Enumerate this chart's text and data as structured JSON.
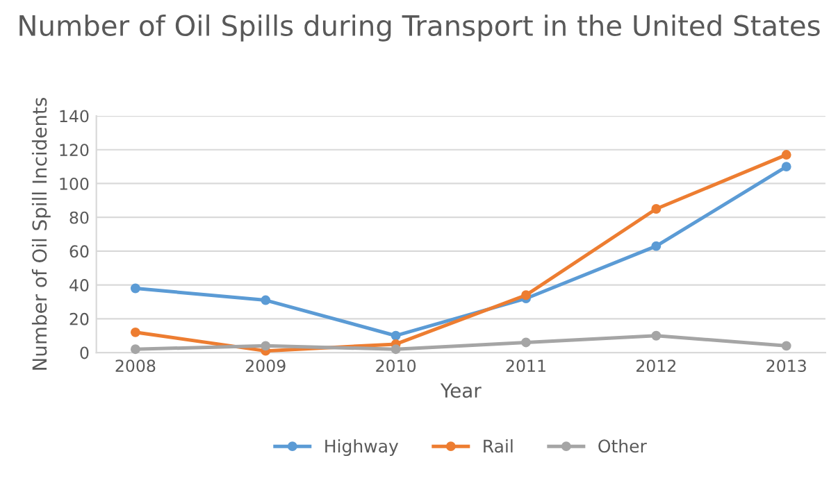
{
  "chart_data": {
    "type": "line",
    "title": "Number of Oil Spills during Transport in the United States",
    "xlabel": "Year",
    "ylabel": "Number of Oil Spill Incidents",
    "categories": [
      "2008",
      "2009",
      "2010",
      "2011",
      "2012",
      "2013"
    ],
    "series": [
      {
        "name": "Highway",
        "color": "#5b9bd5",
        "values": [
          38,
          31,
          10,
          32,
          63,
          110
        ]
      },
      {
        "name": "Rail",
        "color": "#ed7d31",
        "values": [
          12,
          1,
          5,
          34,
          85,
          117
        ]
      },
      {
        "name": "Other",
        "color": "#a5a5a5",
        "values": [
          2,
          4,
          2,
          6,
          10,
          4
        ]
      }
    ],
    "ylim": [
      0,
      140
    ],
    "yticks": [
      0,
      20,
      40,
      60,
      80,
      100,
      120,
      140
    ],
    "grid": "y",
    "legend": "bottom",
    "marker": "circle",
    "line_style": "solid"
  }
}
